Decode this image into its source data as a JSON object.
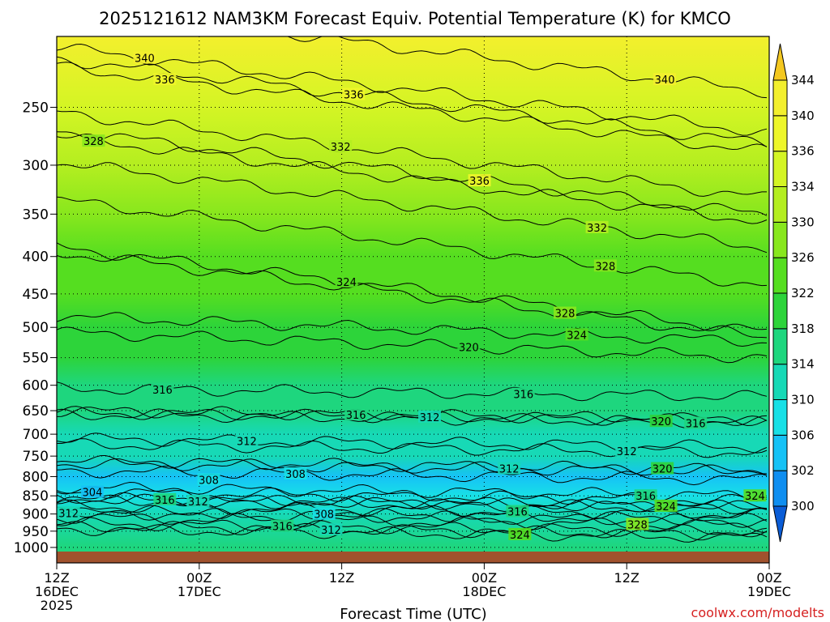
{
  "chart_data": {
    "type": "heatmap",
    "title": "2025121612 NAM3KM Forecast Equiv. Potential Temperature (K) for KMCO",
    "xlabel": "Forecast Time (UTC)",
    "ylabel": "",
    "credit": "coolwx.com/modelts",
    "x_ticks": [
      {
        "hours": 0,
        "l1": "12Z",
        "l2": "16DEC",
        "l3": "2025"
      },
      {
        "hours": 12,
        "l1": "00Z",
        "l2": "17DEC",
        "l3": ""
      },
      {
        "hours": 24,
        "l1": "12Z",
        "l2": "",
        "l3": ""
      },
      {
        "hours": 36,
        "l1": "00Z",
        "l2": "18DEC",
        "l3": ""
      },
      {
        "hours": 48,
        "l1": "12Z",
        "l2": "",
        "l3": ""
      },
      {
        "hours": 60,
        "l1": "00Z",
        "l2": "19DEC",
        "l3": ""
      }
    ],
    "x_range_hours": [
      0,
      60
    ],
    "y_ticks": [
      250,
      300,
      350,
      400,
      450,
      500,
      550,
      600,
      650,
      700,
      750,
      800,
      850,
      900,
      950,
      1000
    ],
    "y_range": [
      200,
      1013
    ],
    "y_scale": "log-pressure",
    "colorbar": {
      "labels": [
        300,
        302,
        306,
        310,
        314,
        318,
        322,
        326,
        330,
        334,
        336,
        340,
        344
      ],
      "colors": [
        "#0a5cd6",
        "#0f8ef0",
        "#16c2f6",
        "#18e0e6",
        "#17d9b6",
        "#1ed67e",
        "#2dd43a",
        "#55de20",
        "#88e71d",
        "#b4ee20",
        "#d4f524",
        "#eef62a",
        "#f3ef2d",
        "#f4c820"
      ]
    },
    "ground_color": "#a0522d",
    "theta_e_profile": [
      {
        "p": 1000,
        "theta_e": 316
      },
      {
        "p": 900,
        "theta_e": 312
      },
      {
        "p": 850,
        "theta_e": 306
      },
      {
        "p": 800,
        "theta_e": 304
      },
      {
        "p": 750,
        "theta_e": 310
      },
      {
        "p": 700,
        "theta_e": 312
      },
      {
        "p": 650,
        "theta_e": 314
      },
      {
        "p": 600,
        "theta_e": 316
      },
      {
        "p": 550,
        "theta_e": 319
      },
      {
        "p": 500,
        "theta_e": 320
      },
      {
        "p": 450,
        "theta_e": 322
      },
      {
        "p": 400,
        "theta_e": 324
      },
      {
        "p": 350,
        "theta_e": 328
      },
      {
        "p": 300,
        "theta_e": 331
      },
      {
        "p": 250,
        "theta_e": 335
      },
      {
        "p": 200,
        "theta_e": 341
      }
    ],
    "contour_labels": [
      {
        "text": "340",
        "hours": 7.4,
        "p": 214
      },
      {
        "text": "336",
        "hours": 9.1,
        "p": 229
      },
      {
        "text": "336",
        "hours": 25.0,
        "p": 240
      },
      {
        "text": "340",
        "hours": 51.2,
        "p": 229
      },
      {
        "text": "328",
        "hours": 3.1,
        "p": 278
      },
      {
        "text": "332",
        "hours": 23.9,
        "p": 283
      },
      {
        "text": "336",
        "hours": 35.6,
        "p": 315
      },
      {
        "text": "332",
        "hours": 45.5,
        "p": 365
      },
      {
        "text": "328",
        "hours": 46.2,
        "p": 412
      },
      {
        "text": "324",
        "hours": 24.4,
        "p": 433
      },
      {
        "text": "328",
        "hours": 42.8,
        "p": 478
      },
      {
        "text": "324",
        "hours": 43.8,
        "p": 512
      },
      {
        "text": "320",
        "hours": 34.7,
        "p": 532
      },
      {
        "text": "316",
        "hours": 8.9,
        "p": 608
      },
      {
        "text": "316",
        "hours": 39.3,
        "p": 617
      },
      {
        "text": "316",
        "hours": 25.2,
        "p": 658
      },
      {
        "text": "312",
        "hours": 31.4,
        "p": 663
      },
      {
        "text": "320",
        "hours": 50.9,
        "p": 672
      },
      {
        "text": "316",
        "hours": 53.8,
        "p": 676
      },
      {
        "text": "312",
        "hours": 16.0,
        "p": 715
      },
      {
        "text": "312",
        "hours": 48.0,
        "p": 738
      },
      {
        "text": "308",
        "hours": 20.1,
        "p": 793
      },
      {
        "text": "312",
        "hours": 38.1,
        "p": 780
      },
      {
        "text": "320",
        "hours": 51.0,
        "p": 780
      },
      {
        "text": "308",
        "hours": 12.8,
        "p": 808
      },
      {
        "text": "304",
        "hours": 3.0,
        "p": 840
      },
      {
        "text": "316",
        "hours": 9.1,
        "p": 860
      },
      {
        "text": "312",
        "hours": 11.9,
        "p": 865
      },
      {
        "text": "316",
        "hours": 49.6,
        "p": 850
      },
      {
        "text": "324",
        "hours": 51.3,
        "p": 878
      },
      {
        "text": "324",
        "hours": 58.8,
        "p": 850
      },
      {
        "text": "312",
        "hours": 1.0,
        "p": 897
      },
      {
        "text": "316",
        "hours": 38.8,
        "p": 893
      },
      {
        "text": "308",
        "hours": 22.5,
        "p": 900
      },
      {
        "text": "328",
        "hours": 48.9,
        "p": 930
      },
      {
        "text": "316",
        "hours": 19.0,
        "p": 935
      },
      {
        "text": "312",
        "hours": 23.1,
        "p": 945
      },
      {
        "text": "324",
        "hours": 39.0,
        "p": 960
      }
    ]
  }
}
